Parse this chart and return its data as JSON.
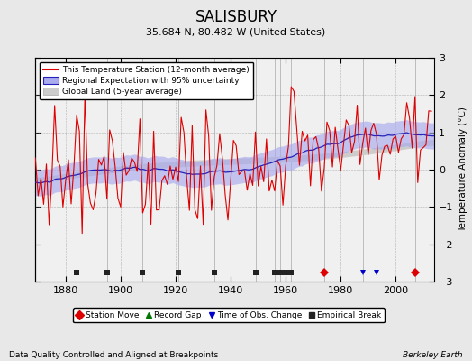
{
  "title": "SALISBURY",
  "subtitle": "35.684 N, 80.482 W (United States)",
  "xlabel_bottom": "Data Quality Controlled and Aligned at Breakpoints",
  "xlabel_right": "Berkeley Earth",
  "ylabel": "Temperature Anomaly (°C)",
  "xlim": [
    1869,
    2014
  ],
  "ylim": [
    -3,
    3
  ],
  "yticks": [
    -3,
    -2,
    -1,
    0,
    1,
    2,
    3
  ],
  "xticks": [
    1880,
    1900,
    1920,
    1940,
    1960,
    1980,
    2000
  ],
  "start_year": 1869,
  "end_year": 2013,
  "bg_color": "#e8e8e8",
  "plot_bg_color": "#f0f0f0",
  "station_color": "#dd0000",
  "regional_color": "#2222bb",
  "regional_fill_color": "#aaaaee",
  "global_color": "#cccccc",
  "legend_labels": [
    "This Temperature Station (12-month average)",
    "Regional Expectation with 95% uncertainty",
    "Global Land (5-year average)"
  ],
  "bottom_legend": [
    {
      "marker": "D",
      "color": "#dd0000",
      "label": "Station Move"
    },
    {
      "marker": "^",
      "color": "#007700",
      "label": "Record Gap"
    },
    {
      "marker": "v",
      "color": "#0000cc",
      "label": "Time of Obs. Change"
    },
    {
      "marker": "s",
      "color": "#222222",
      "label": "Empirical Break"
    }
  ],
  "empirical_breaks": [
    1884,
    1895,
    1908,
    1921,
    1934,
    1949,
    1956,
    1958,
    1960,
    1962
  ],
  "station_moves": [
    1974,
    2007
  ],
  "time_of_obs": [
    1988,
    1993
  ],
  "record_gaps": []
}
